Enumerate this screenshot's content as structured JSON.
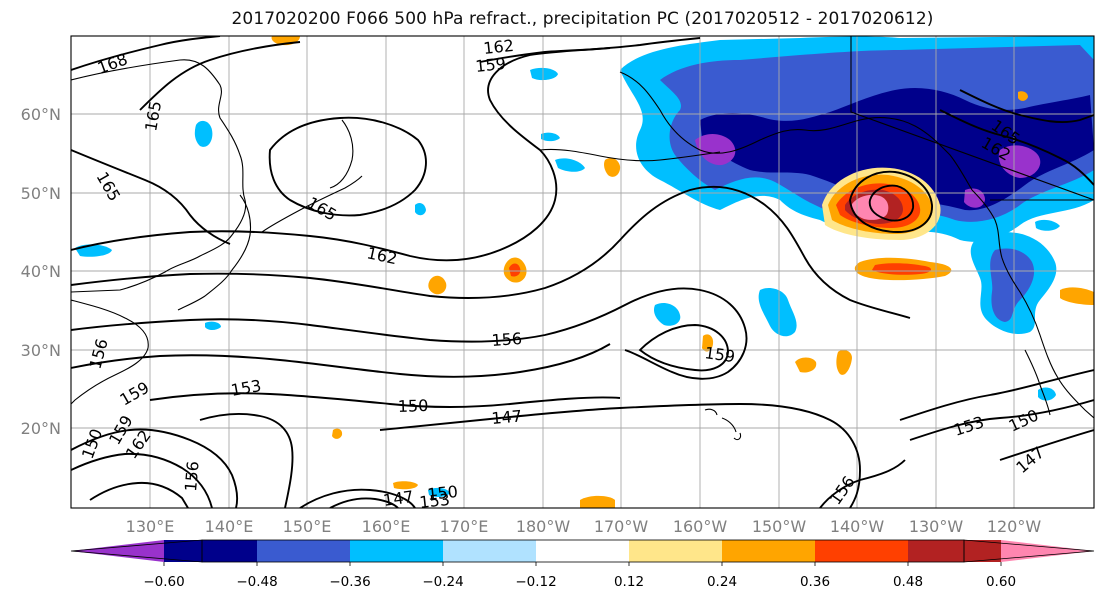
{
  "title": "2017020200 F066 500 hPa refract., precipitation PC (2017020512 - 2017020612)",
  "map": {
    "lat_labels": [
      "60°N",
      "50°N",
      "40°N",
      "30°N",
      "20°N"
    ],
    "lon_labels": [
      "130°E",
      "140°E",
      "150°E",
      "160°E",
      "170°E",
      "180°W",
      "170°W",
      "160°W",
      "150°W",
      "140°W",
      "130°W",
      "120°W"
    ],
    "contour_labels": [
      {
        "id": "c168a",
        "text": "168"
      },
      {
        "id": "c162a",
        "text": "162"
      },
      {
        "id": "c159a",
        "text": "159"
      },
      {
        "id": "c165a",
        "text": "165"
      },
      {
        "id": "c165b",
        "text": "165"
      },
      {
        "id": "c165c",
        "text": "165"
      },
      {
        "id": "c162b",
        "text": "162"
      },
      {
        "id": "c165d",
        "text": "165"
      },
      {
        "id": "c162c",
        "text": "162"
      },
      {
        "id": "c156a",
        "text": "156"
      },
      {
        "id": "c159b",
        "text": "159"
      },
      {
        "id": "c156b",
        "text": "156"
      },
      {
        "id": "c153a",
        "text": "153"
      },
      {
        "id": "c159c",
        "text": "159"
      },
      {
        "id": "c150a",
        "text": "150"
      },
      {
        "id": "c147a",
        "text": "147"
      },
      {
        "id": "c150b",
        "text": "150"
      },
      {
        "id": "c159d",
        "text": "159"
      },
      {
        "id": "c162d",
        "text": "162"
      },
      {
        "id": "c156c",
        "text": "156"
      },
      {
        "id": "c147b",
        "text": "147"
      },
      {
        "id": "c150c",
        "text": "150"
      },
      {
        "id": "c153b",
        "text": "153"
      },
      {
        "id": "c156d",
        "text": "156"
      },
      {
        "id": "c153c",
        "text": "153"
      },
      {
        "id": "c150d",
        "text": "150"
      },
      {
        "id": "c147c",
        "text": "147"
      }
    ]
  },
  "colorbar": {
    "ticks": [
      "−0.60",
      "−0.48",
      "−0.36",
      "−0.24",
      "−0.12",
      "0.12",
      "0.24",
      "0.36",
      "0.48",
      "0.60"
    ],
    "colors": [
      "#9932cc",
      "#00008b",
      "#3a5bd0",
      "#00bfff",
      "#b0e2ff",
      "#ffffff",
      "#ffe68a",
      "#ffa500",
      "#ff4000",
      "#b22222",
      "#ff86b0"
    ]
  }
}
